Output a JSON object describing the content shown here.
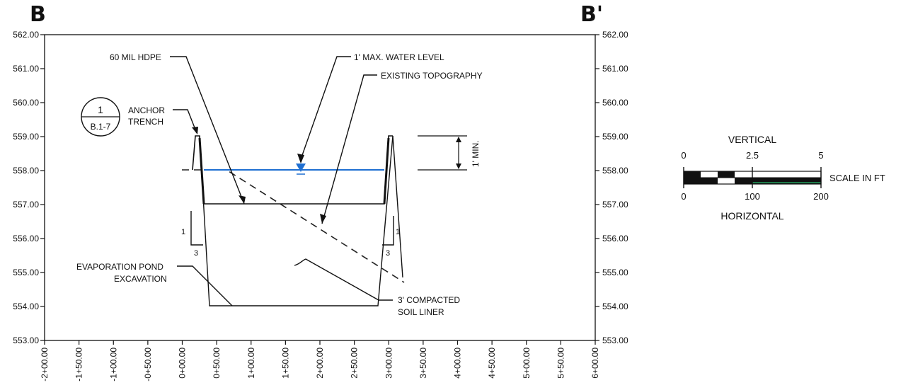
{
  "section": {
    "left_label": "B",
    "right_label": "B'"
  },
  "y_axis": {
    "min": 553,
    "max": 562,
    "step": 1,
    "labels": [
      "553.00",
      "554.00",
      "555.00",
      "556.00",
      "557.00",
      "558.00",
      "559.00",
      "560.00",
      "561.00",
      "562.00"
    ]
  },
  "x_axis": {
    "min": -200,
    "max": 600,
    "step": 50,
    "labels": [
      "-2+00.00",
      "-1+50.00",
      "-1+00.00",
      "-0+50.00",
      "0+00.00",
      "0+50.00",
      "1+00.00",
      "1+50.00",
      "2+00.00",
      "2+50.00",
      "3+00.00",
      "3+50.00",
      "4+00.00",
      "4+50.00",
      "5+00.00",
      "5+50.00",
      "6+00.00"
    ]
  },
  "callouts": {
    "hdpe": "60 MIL HDPE",
    "water_level": "1' MAX. WATER LEVEL",
    "existing_topo": "EXISTING TOPOGRAPHY",
    "anchor_line1": "ANCHOR",
    "anchor_line2": "TRENCH",
    "evap_line1": "EVAPORATION POND",
    "evap_line2": "EXCAVATION",
    "liner_line1": "3' COMPACTED",
    "liner_line2": "SOIL LINER",
    "one_min": "1' MIN.",
    "slope_rise": "1",
    "slope_run": "3"
  },
  "detail_ref": {
    "number": "1",
    "sheet": "B.1-7"
  },
  "scale": {
    "vertical_title": "VERTICAL",
    "vertical_ticks": [
      "0",
      "2.5",
      "5"
    ],
    "horizontal_title": "HORIZONTAL",
    "horizontal_ticks": [
      "0",
      "100",
      "200"
    ],
    "unit_label": "SCALE IN FT"
  },
  "colors": {
    "water": "#1f6fd1",
    "ink": "#111111",
    "scale_accent": "#1e7a4a"
  }
}
